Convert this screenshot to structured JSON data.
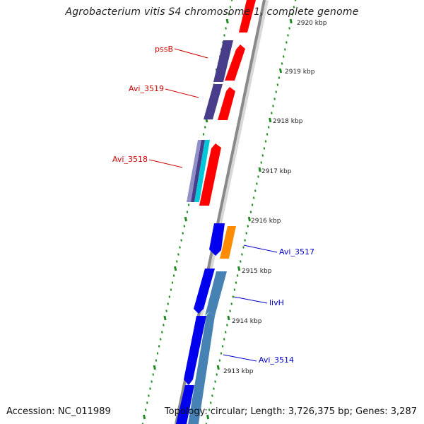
{
  "title": "Agrobacterium vitis S4 chromosome 1, complete genome",
  "accession": "Accession: NC_011989",
  "summary": "Topology: circular; Length: 3,726,375 bp; Genes: 3,287",
  "colors": {
    "backbone": "#8a8a8a",
    "ticks": "#228b22",
    "red_gene": "#ff0000",
    "purple_gene": "#483d8b",
    "blue_gene": "#0000ee",
    "steel_gene": "#4682b4",
    "orange_gene": "#ff8c00",
    "cyan_gene": "#00c8d8",
    "top_label": "#cc0000",
    "bottom_label": "#0000cc"
  },
  "scale_labels": [
    "2920 kbp",
    "2919 kbp",
    "2918 kbp",
    "2917 kbp",
    "2916 kbp",
    "2915 kbp",
    "2914 kbp",
    "2913 kbp"
  ],
  "gene_labels": [
    "pssB",
    "Avi_3519",
    "Avi_3518",
    "Avi_3517",
    "livH",
    "Avi_3514"
  ]
}
